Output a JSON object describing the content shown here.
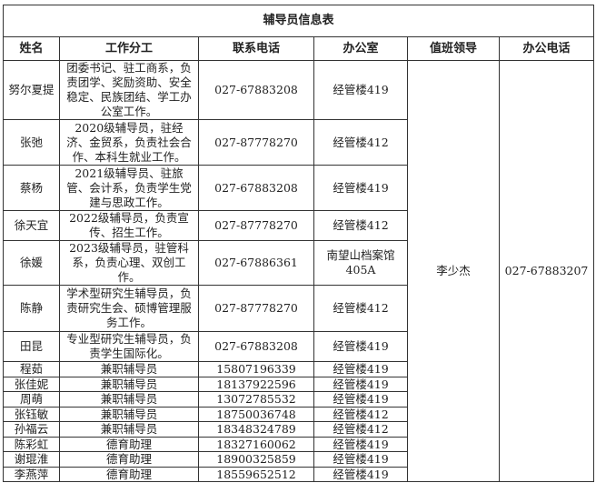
{
  "title": "辅导员信息表",
  "headers": [
    "姓名",
    "工作分工",
    "联系电话",
    "办公室",
    "值班领导",
    "办公电话"
  ],
  "leader": {
    "name": "李少杰",
    "phone": "027-67883207"
  },
  "rows": [
    {
      "name": "努尔夏提",
      "duty": "团委书记、驻工商系，负责团学、奖励资助、安全稳定、民族团结、学工办公室工作。",
      "phone": "027-67883208",
      "office": "经管楼419"
    },
    {
      "name": "张弛",
      "duty": "2020级辅导员，驻经济、金贸系，负责社会合作、本科生就业工作。",
      "phone": "027-87778270",
      "office": "经管楼412"
    },
    {
      "name": "蔡杨",
      "duty": "2021级辅导员、驻旅管、会计系，负责学生党建与思政工作。",
      "phone": "027-67883208",
      "office": "经管楼419"
    },
    {
      "name": "徐天宜",
      "duty": "2022级辅导员，负责宣传、招生工作。",
      "phone": "027-87778270",
      "office": "经管楼412"
    },
    {
      "name": "徐媛",
      "duty": "2023级辅导员，驻管科系，负责心理、双创工作。",
      "phone": "027-67886361",
      "office": "南望山档案馆405A"
    },
    {
      "name": "陈静",
      "duty": "学术型研究生辅导员，负责研究生会、硕博管理服务工作。",
      "phone": "027-87778270",
      "office": "经管楼412"
    },
    {
      "name": "田昆",
      "duty": "专业型研究生辅导员，负责学生国际化。",
      "phone": "027-67883208",
      "office": "经管楼419"
    },
    {
      "name": "程茹",
      "duty": "兼职辅导员",
      "phone": "15807196339",
      "office": "经管楼419"
    },
    {
      "name": "张佳妮",
      "duty": "兼职辅导员",
      "phone": "18137922596",
      "office": "经管楼419"
    },
    {
      "name": "周萌",
      "duty": "兼职辅导员",
      "phone": "13072785532",
      "office": "经管楼419"
    },
    {
      "name": "张钰敏",
      "duty": "兼职辅导员",
      "phone": "18750036748",
      "office": "经管楼412"
    },
    {
      "name": "孙福云",
      "duty": "兼职辅导员",
      "phone": "18348324789",
      "office": "经管楼412"
    },
    {
      "name": "陈彩虹",
      "duty": "德育助理",
      "phone": "18327160062",
      "office": "经管楼419"
    },
    {
      "name": "谢琨淮",
      "duty": "德育助理",
      "phone": "18900325859",
      "office": "经管楼419"
    },
    {
      "name": "李燕萍",
      "duty": "德育助理",
      "phone": "18559652512",
      "office": "经管楼419"
    }
  ]
}
